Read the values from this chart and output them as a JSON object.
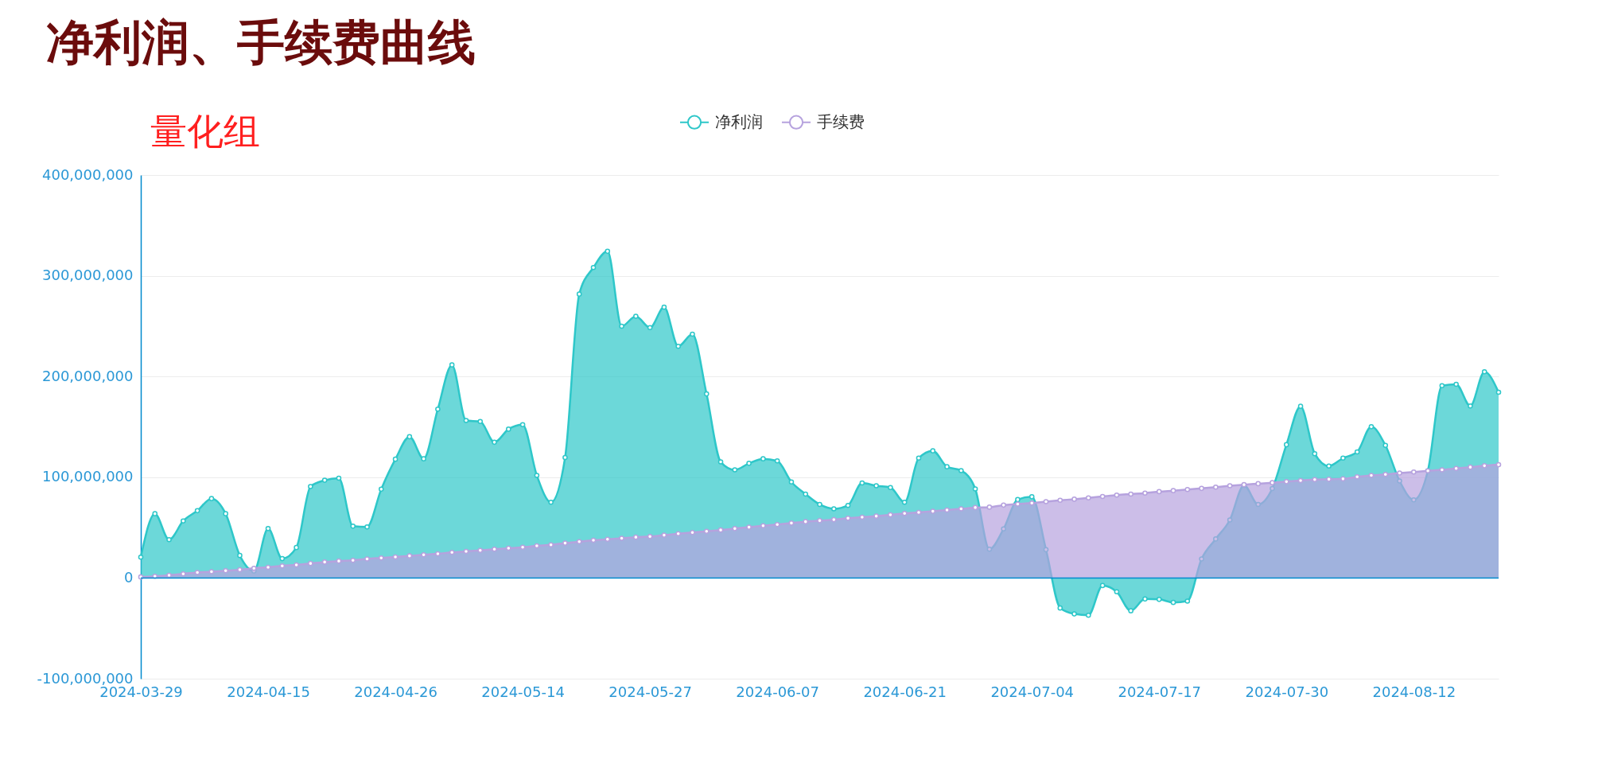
{
  "chart_data": {
    "type": "area",
    "title": "净利润、手续费曲线",
    "subtitle": "量化组",
    "categories": [
      "2024-03-29",
      null,
      null,
      null,
      null,
      null,
      null,
      null,
      null,
      "2024-04-15",
      null,
      null,
      null,
      null,
      null,
      null,
      null,
      null,
      "2024-04-26",
      null,
      null,
      null,
      null,
      null,
      null,
      null,
      null,
      "2024-05-14",
      null,
      null,
      null,
      null,
      null,
      null,
      null,
      null,
      "2024-05-27",
      null,
      null,
      null,
      null,
      null,
      null,
      null,
      null,
      "2024-06-07",
      null,
      null,
      null,
      null,
      null,
      null,
      null,
      null,
      "2024-06-21",
      null,
      null,
      null,
      null,
      null,
      null,
      null,
      null,
      "2024-07-04",
      null,
      null,
      null,
      null,
      null,
      null,
      null,
      null,
      "2024-07-17",
      null,
      null,
      null,
      null,
      null,
      null,
      null,
      null,
      "2024-07-30",
      null,
      null,
      null,
      null,
      null,
      null,
      null,
      null,
      "2024-08-12",
      null,
      null,
      null,
      null,
      null,
      null
    ],
    "series": [
      {
        "name": "净利润",
        "color": "#2ec7c9",
        "values": [
          20600000,
          63800000,
          38000000,
          56600000,
          66800000,
          78800000,
          63800000,
          22300000,
          6900000,
          49000000,
          19200000,
          30200000,
          90800000,
          97000000,
          99100000,
          51400000,
          50700000,
          88100000,
          117900000,
          140200000,
          118300000,
          167600000,
          211500000,
          156300000,
          155300000,
          134700000,
          147700000,
          152200000,
          101800000,
          75100000,
          119600000,
          281800000,
          308200000,
          324300000,
          249900000,
          259800000,
          248500000,
          268800000,
          230000000,
          242000000,
          182700000,
          115200000,
          107300000,
          113800000,
          118300000,
          116200000,
          95300000,
          83300000,
          73000000,
          68600000,
          72000000,
          94300000,
          91500000,
          89800000,
          75100000,
          119000000,
          126200000,
          110400000,
          106600000,
          88400000,
          28500000,
          48700000,
          77800000,
          80600000,
          28100000,
          -29800000,
          -35700000,
          -37000000,
          -7500000,
          -13700000,
          -32600000,
          -20900000,
          -21300000,
          -24300000,
          -23000000,
          18900000,
          38700000,
          57600000,
          91900000,
          73000000,
          88800000,
          132300000,
          170400000,
          123400000,
          111100000,
          119000000,
          125100000,
          150100000,
          131600000,
          96300000,
          77500000,
          106300000,
          190900000,
          192300000,
          170700000,
          204700000,
          184400000
        ]
      },
      {
        "name": "手续费",
        "color": "#b6a2de",
        "values": [
          1000000,
          1700000,
          2700000,
          4100000,
          5500000,
          6200000,
          7200000,
          8200000,
          9600000,
          10600000,
          12000000,
          13000000,
          14400000,
          15800000,
          16800000,
          17500000,
          18900000,
          19900000,
          20900000,
          21900000,
          23000000,
          24000000,
          25400000,
          26400000,
          27400000,
          28500000,
          29500000,
          30500000,
          31900000,
          32900000,
          34600000,
          36000000,
          37400000,
          38400000,
          39400000,
          40500000,
          41100000,
          42500000,
          43900000,
          45200000,
          46300000,
          47600000,
          49000000,
          50400000,
          51800000,
          53100000,
          54500000,
          55900000,
          56900000,
          57900000,
          59300000,
          60300000,
          61400000,
          62700000,
          64100000,
          65100000,
          66200000,
          67500000,
          68600000,
          69900000,
          70300000,
          72300000,
          73400000,
          74400000,
          75800000,
          77100000,
          78200000,
          79500000,
          80900000,
          82300000,
          83300000,
          84300000,
          85700000,
          86700000,
          87800000,
          88900000,
          90200000,
          91500000,
          92600000,
          93600000,
          94600000,
          95600000,
          96700000,
          97700000,
          98000000,
          98400000,
          100400000,
          101800000,
          102800000,
          104200000,
          105200000,
          106300000,
          107300000,
          108700000,
          110000000,
          111400000,
          112400000
        ]
      }
    ],
    "ylim": [
      -100000000,
      400000000
    ],
    "yticks": [
      {
        "value": -100000000,
        "label": "-100,000,000"
      },
      0,
      {
        "value": 100000000,
        "label": "100,000,000"
      },
      {
        "value": 200000000,
        "label": "200,000,000"
      },
      {
        "value": 300000000,
        "label": "300,000,000"
      },
      {
        "value": 400000000,
        "label": "400,000,000"
      }
    ],
    "ref_lines": [
      {
        "axis": "y",
        "value": 0,
        "color": "#008acd",
        "line_style": "solid"
      }
    ],
    "grid": "y",
    "legend": "top",
    "marker": "circle",
    "line_style": "solid"
  }
}
